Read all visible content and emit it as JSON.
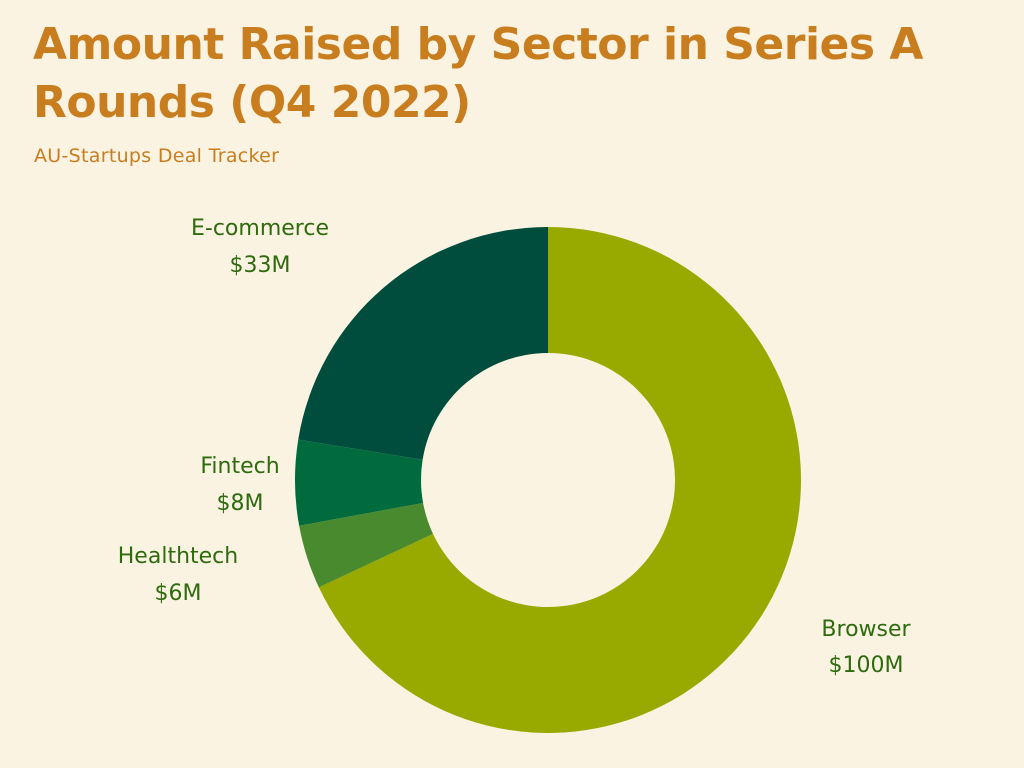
{
  "title": "Amount Raised by Sector in Series A Rounds (Q4 2022)",
  "subtitle": "AU-Startups Deal Tracker",
  "colors": {
    "background": "#FBF3E2",
    "title": "#C87D1E",
    "label": "#2E6A0E"
  },
  "chart_data": {
    "type": "pie",
    "style": "donut",
    "title": "Amount Raised by Sector in Series A Rounds (Q4 2022)",
    "subtitle": "AU-Startups Deal Tracker",
    "unit": "$M",
    "legend": "none",
    "slices": [
      {
        "label": "Browser",
        "value": 100,
        "value_label": "$100M",
        "color": "#98AA00"
      },
      {
        "label": "Healthtech",
        "value": 6,
        "value_label": "$6M",
        "color": "#4A8A2E"
      },
      {
        "label": "Fintech",
        "value": 8,
        "value_label": "$8M",
        "color": "#006B3C"
      },
      {
        "label": "E-commerce",
        "value": 33,
        "value_label": "$33M",
        "color": "#004D3D"
      }
    ]
  }
}
